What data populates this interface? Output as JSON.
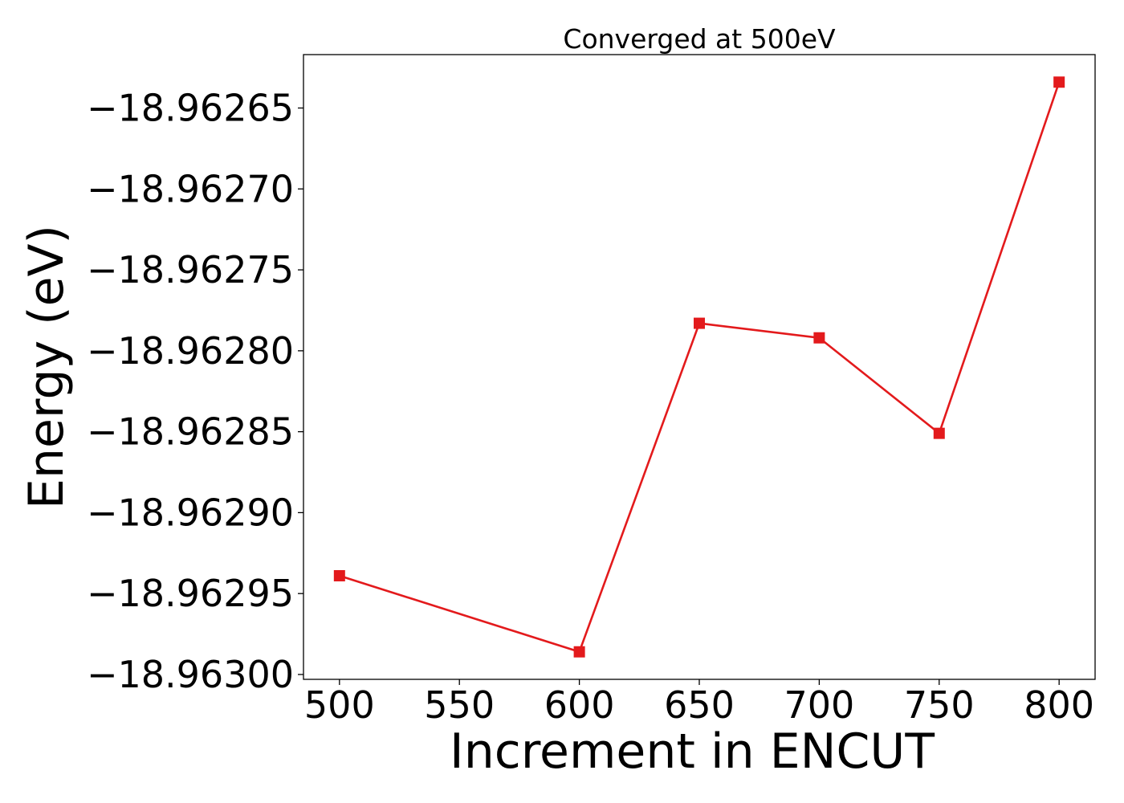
{
  "chart_data": {
    "type": "line",
    "title": "Converged at 500eV",
    "xlabel": "Increment in ENCUT",
    "ylabel": "Energy (eV)",
    "xlim": [
      485,
      815
    ],
    "ylim": [
      -18.963003,
      -18.962617
    ],
    "x_ticks": [
      500,
      550,
      600,
      650,
      700,
      750,
      800
    ],
    "x_tick_labels": [
      "500",
      "550",
      "600",
      "650",
      "700",
      "750",
      "800"
    ],
    "y_ticks": [
      -18.96265,
      -18.9627,
      -18.96275,
      -18.9628,
      -18.96285,
      -18.9629,
      -18.96295,
      -18.963
    ],
    "y_tick_labels": [
      "−18.96265",
      "−18.96270",
      "−18.96275",
      "−18.96280",
      "−18.96285",
      "−18.96290",
      "−18.96295",
      "−18.96300"
    ],
    "grid": false,
    "legend": "none",
    "series": [
      {
        "color": "#e31a1c",
        "marker": "square",
        "x": [
          500,
          600,
          650,
          700,
          750,
          800
        ],
        "y": [
          -18.962939,
          -18.962986,
          -18.962783,
          -18.962792,
          -18.962851,
          -18.962634
        ]
      }
    ]
  }
}
